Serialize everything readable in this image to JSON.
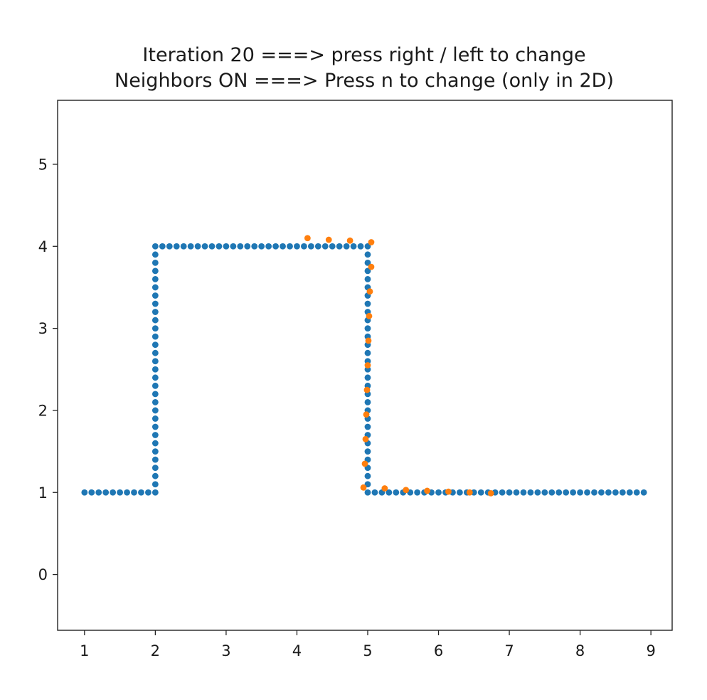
{
  "chart_data": {
    "type": "scatter",
    "title_lines": [
      "Iteration 20 ===> press right / left to change",
      "Neighbors ON ===> Press n to change (only in 2D)"
    ],
    "xlabel": "",
    "ylabel": "",
    "xlim": [
      0.62,
      9.3
    ],
    "ylim": [
      -0.68,
      5.78
    ],
    "xticks": [
      1,
      2,
      3,
      4,
      5,
      6,
      7,
      8,
      9
    ],
    "yticks": [
      0,
      1,
      2,
      3,
      4,
      5
    ],
    "grid": false,
    "legend": "none",
    "series": [
      {
        "color": "#1f77b4",
        "points": [
          [
            1.0,
            1.0
          ],
          [
            1.1,
            1.0
          ],
          [
            1.2,
            1.0
          ],
          [
            1.3,
            1.0
          ],
          [
            1.4,
            1.0
          ],
          [
            1.5,
            1.0
          ],
          [
            1.6,
            1.0
          ],
          [
            1.7,
            1.0
          ],
          [
            1.8,
            1.0
          ],
          [
            1.9,
            1.0
          ],
          [
            2.0,
            1.0
          ],
          [
            2.0,
            1.1
          ],
          [
            2.0,
            1.2
          ],
          [
            2.0,
            1.3
          ],
          [
            2.0,
            1.4
          ],
          [
            2.0,
            1.5
          ],
          [
            2.0,
            1.6
          ],
          [
            2.0,
            1.7
          ],
          [
            2.0,
            1.8
          ],
          [
            2.0,
            1.9
          ],
          [
            2.0,
            2.0
          ],
          [
            2.0,
            2.1
          ],
          [
            2.0,
            2.2
          ],
          [
            2.0,
            2.3
          ],
          [
            2.0,
            2.4
          ],
          [
            2.0,
            2.5
          ],
          [
            2.0,
            2.6
          ],
          [
            2.0,
            2.7
          ],
          [
            2.0,
            2.8
          ],
          [
            2.0,
            2.9
          ],
          [
            2.0,
            3.0
          ],
          [
            2.0,
            3.1
          ],
          [
            2.0,
            3.2
          ],
          [
            2.0,
            3.3
          ],
          [
            2.0,
            3.4
          ],
          [
            2.0,
            3.5
          ],
          [
            2.0,
            3.6
          ],
          [
            2.0,
            3.7
          ],
          [
            2.0,
            3.8
          ],
          [
            2.0,
            3.9
          ],
          [
            2.0,
            4.0
          ],
          [
            2.1,
            4.0
          ],
          [
            2.2,
            4.0
          ],
          [
            2.3,
            4.0
          ],
          [
            2.4,
            4.0
          ],
          [
            2.5,
            4.0
          ],
          [
            2.6,
            4.0
          ],
          [
            2.7,
            4.0
          ],
          [
            2.8,
            4.0
          ],
          [
            2.9,
            4.0
          ],
          [
            3.0,
            4.0
          ],
          [
            3.1,
            4.0
          ],
          [
            3.2,
            4.0
          ],
          [
            3.3,
            4.0
          ],
          [
            3.4,
            4.0
          ],
          [
            3.5,
            4.0
          ],
          [
            3.6,
            4.0
          ],
          [
            3.7,
            4.0
          ],
          [
            3.8,
            4.0
          ],
          [
            3.9,
            4.0
          ],
          [
            4.0,
            4.0
          ],
          [
            4.1,
            4.0
          ],
          [
            4.2,
            4.0
          ],
          [
            4.3,
            4.0
          ],
          [
            4.4,
            4.0
          ],
          [
            4.5,
            4.0
          ],
          [
            4.6,
            4.0
          ],
          [
            4.7,
            4.0
          ],
          [
            4.8,
            4.0
          ],
          [
            4.9,
            4.0
          ],
          [
            5.0,
            4.0
          ],
          [
            5.0,
            3.9
          ],
          [
            5.0,
            3.8
          ],
          [
            5.0,
            3.7
          ],
          [
            5.0,
            3.6
          ],
          [
            5.0,
            3.5
          ],
          [
            5.0,
            3.4
          ],
          [
            5.0,
            3.3
          ],
          [
            5.0,
            3.2
          ],
          [
            5.0,
            3.1
          ],
          [
            5.0,
            3.0
          ],
          [
            5.0,
            2.9
          ],
          [
            5.0,
            2.8
          ],
          [
            5.0,
            2.7
          ],
          [
            5.0,
            2.6
          ],
          [
            5.0,
            2.5
          ],
          [
            5.0,
            2.4
          ],
          [
            5.0,
            2.3
          ],
          [
            5.0,
            2.2
          ],
          [
            5.0,
            2.1
          ],
          [
            5.0,
            2.0
          ],
          [
            5.0,
            1.9
          ],
          [
            5.0,
            1.8
          ],
          [
            5.0,
            1.7
          ],
          [
            5.0,
            1.6
          ],
          [
            5.0,
            1.5
          ],
          [
            5.0,
            1.4
          ],
          [
            5.0,
            1.3
          ],
          [
            5.0,
            1.2
          ],
          [
            5.0,
            1.1
          ],
          [
            5.0,
            1.0
          ],
          [
            5.1,
            1.0
          ],
          [
            5.2,
            1.0
          ],
          [
            5.3,
            1.0
          ],
          [
            5.4,
            1.0
          ],
          [
            5.5,
            1.0
          ],
          [
            5.6,
            1.0
          ],
          [
            5.7,
            1.0
          ],
          [
            5.8,
            1.0
          ],
          [
            5.9,
            1.0
          ],
          [
            6.0,
            1.0
          ],
          [
            6.1,
            1.0
          ],
          [
            6.2,
            1.0
          ],
          [
            6.3,
            1.0
          ],
          [
            6.4,
            1.0
          ],
          [
            6.5,
            1.0
          ],
          [
            6.6,
            1.0
          ],
          [
            6.7,
            1.0
          ],
          [
            6.8,
            1.0
          ],
          [
            6.9,
            1.0
          ],
          [
            7.0,
            1.0
          ],
          [
            7.1,
            1.0
          ],
          [
            7.2,
            1.0
          ],
          [
            7.3,
            1.0
          ],
          [
            7.4,
            1.0
          ],
          [
            7.5,
            1.0
          ],
          [
            7.6,
            1.0
          ],
          [
            7.7,
            1.0
          ],
          [
            7.8,
            1.0
          ],
          [
            7.9,
            1.0
          ],
          [
            8.0,
            1.0
          ],
          [
            8.1,
            1.0
          ],
          [
            8.2,
            1.0
          ],
          [
            8.3,
            1.0
          ],
          [
            8.4,
            1.0
          ],
          [
            8.5,
            1.0
          ],
          [
            8.6,
            1.0
          ],
          [
            8.7,
            1.0
          ],
          [
            8.8,
            1.0
          ],
          [
            8.9,
            1.0
          ]
        ]
      },
      {
        "color": "#ff7f0e",
        "points": [
          [
            4.15,
            4.1
          ],
          [
            4.45,
            4.08
          ],
          [
            4.75,
            4.07
          ],
          [
            5.05,
            4.05
          ],
          [
            5.05,
            3.75
          ],
          [
            5.03,
            3.45
          ],
          [
            5.02,
            3.15
          ],
          [
            5.01,
            2.85
          ],
          [
            5.0,
            2.55
          ],
          [
            4.99,
            2.25
          ],
          [
            4.98,
            1.95
          ],
          [
            4.97,
            1.65
          ],
          [
            4.96,
            1.35
          ],
          [
            4.94,
            1.06
          ],
          [
            5.24,
            1.05
          ],
          [
            5.54,
            1.03
          ],
          [
            5.84,
            1.02
          ],
          [
            6.14,
            1.01
          ],
          [
            6.44,
            1.0
          ],
          [
            6.74,
            0.99
          ]
        ]
      }
    ]
  }
}
